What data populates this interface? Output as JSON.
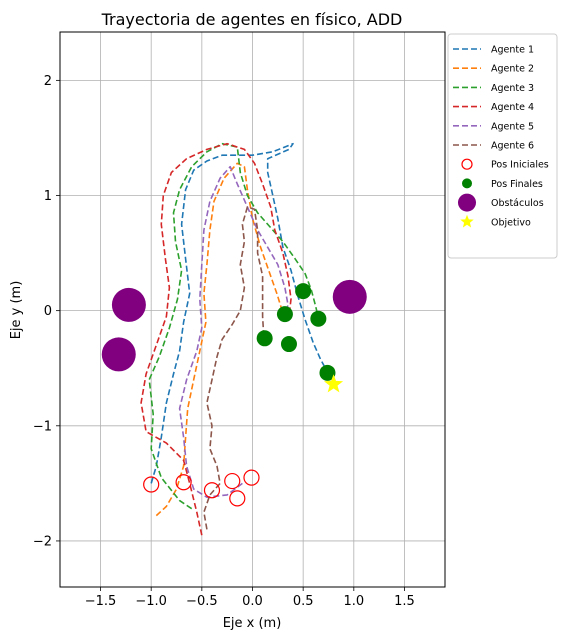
{
  "chart_data": {
    "type": "line",
    "title": "Trayectoria de agentes en físico, ADD",
    "xlabel": "Eje x (m)",
    "ylabel": "Eje y (m)",
    "xlim": [
      -1.9,
      1.9
    ],
    "ylim": [
      -2.4,
      2.42
    ],
    "xticks": [
      -1.5,
      -1.0,
      -0.5,
      0.0,
      0.5,
      1.0,
      1.5
    ],
    "xtick_labels": [
      "−1.5",
      "−1.0",
      "−0.5",
      "0.0",
      "0.5",
      "1.0",
      "1.5"
    ],
    "yticks": [
      -2,
      -1,
      0,
      1,
      2
    ],
    "ytick_labels": [
      "−2",
      "−1",
      "0",
      "1",
      "2"
    ],
    "grid": true,
    "legend_position": "outside-right-top",
    "series": [
      {
        "name": "Agente 1",
        "color": "#1f77b4",
        "style": "dashed",
        "points": [
          [
            -1.0,
            -1.5
          ],
          [
            -0.95,
            -1.35
          ],
          [
            -0.9,
            -1.1
          ],
          [
            -0.85,
            -0.8
          ],
          [
            -0.78,
            -0.55
          ],
          [
            -0.72,
            -0.35
          ],
          [
            -0.68,
            -0.1
          ],
          [
            -0.62,
            0.15
          ],
          [
            -0.66,
            0.45
          ],
          [
            -0.7,
            0.75
          ],
          [
            -0.66,
            1.05
          ],
          [
            -0.58,
            1.22
          ],
          [
            -0.45,
            1.3
          ],
          [
            -0.3,
            1.35
          ],
          [
            0.0,
            1.35
          ],
          [
            0.2,
            1.38
          ],
          [
            0.4,
            1.45
          ],
          [
            0.36,
            1.4
          ],
          [
            0.15,
            1.32
          ],
          [
            0.15,
            1.2
          ],
          [
            0.2,
            1.0
          ],
          [
            0.25,
            0.8
          ],
          [
            0.3,
            0.55
          ],
          [
            0.38,
            0.35
          ],
          [
            0.45,
            0.12
          ],
          [
            0.52,
            -0.08
          ],
          [
            0.6,
            -0.28
          ],
          [
            0.67,
            -0.42
          ],
          [
            0.72,
            -0.5
          ]
        ]
      },
      {
        "name": "Agente 2",
        "color": "#ff7f0e",
        "style": "dashed",
        "points": [
          [
            -0.95,
            -1.78
          ],
          [
            -0.85,
            -1.7
          ],
          [
            -0.75,
            -1.55
          ],
          [
            -0.68,
            -1.35
          ],
          [
            -0.66,
            -1.1
          ],
          [
            -0.64,
            -0.85
          ],
          [
            -0.58,
            -0.6
          ],
          [
            -0.52,
            -0.35
          ],
          [
            -0.46,
            -0.1
          ],
          [
            -0.48,
            0.15
          ],
          [
            -0.45,
            0.4
          ],
          [
            -0.42,
            0.7
          ],
          [
            -0.38,
            0.95
          ],
          [
            -0.28,
            1.15
          ],
          [
            -0.15,
            1.28
          ],
          [
            -0.08,
            1.25
          ],
          [
            -0.05,
            1.05
          ],
          [
            0.0,
            0.8
          ],
          [
            0.08,
            0.55
          ],
          [
            0.16,
            0.35
          ],
          [
            0.24,
            0.15
          ],
          [
            0.3,
            -0.02
          ]
        ]
      },
      {
        "name": "Agente 3",
        "color": "#2ca02c",
        "style": "dashed",
        "points": [
          [
            -0.6,
            -1.72
          ],
          [
            -0.72,
            -1.65
          ],
          [
            -0.9,
            -1.45
          ],
          [
            -1.0,
            -1.2
          ],
          [
            -0.98,
            -0.9
          ],
          [
            -1.02,
            -0.6
          ],
          [
            -0.92,
            -0.4
          ],
          [
            -0.82,
            -0.15
          ],
          [
            -0.74,
            0.1
          ],
          [
            -0.7,
            0.35
          ],
          [
            -0.76,
            0.6
          ],
          [
            -0.78,
            0.85
          ],
          [
            -0.72,
            1.05
          ],
          [
            -0.6,
            1.25
          ],
          [
            -0.45,
            1.38
          ],
          [
            -0.3,
            1.45
          ],
          [
            -0.15,
            1.42
          ],
          [
            -0.12,
            1.2
          ],
          [
            -0.05,
            1.0
          ],
          [
            0.05,
            0.85
          ],
          [
            0.18,
            0.72
          ],
          [
            0.3,
            0.6
          ],
          [
            0.42,
            0.45
          ],
          [
            0.52,
            0.32
          ],
          [
            0.58,
            0.18
          ],
          [
            0.62,
            0.05
          ],
          [
            0.65,
            -0.06
          ]
        ]
      },
      {
        "name": "Agente 4",
        "color": "#d62728",
        "style": "dashed",
        "points": [
          [
            -0.5,
            -1.95
          ],
          [
            -0.55,
            -1.75
          ],
          [
            -0.62,
            -1.5
          ],
          [
            -0.68,
            -1.3
          ],
          [
            -0.85,
            -1.15
          ],
          [
            -1.05,
            -1.05
          ],
          [
            -1.1,
            -0.8
          ],
          [
            -1.05,
            -0.55
          ],
          [
            -0.95,
            -0.3
          ],
          [
            -0.85,
            -0.05
          ],
          [
            -0.82,
            0.2
          ],
          [
            -0.86,
            0.45
          ],
          [
            -0.9,
            0.75
          ],
          [
            -0.88,
            1.0
          ],
          [
            -0.8,
            1.2
          ],
          [
            -0.65,
            1.32
          ],
          [
            -0.45,
            1.4
          ],
          [
            -0.25,
            1.45
          ],
          [
            -0.08,
            1.4
          ],
          [
            0.02,
            1.28
          ],
          [
            0.1,
            1.1
          ],
          [
            0.18,
            0.9
          ],
          [
            0.22,
            0.7
          ],
          [
            0.3,
            0.5
          ],
          [
            0.35,
            0.3
          ],
          [
            0.38,
            0.1
          ],
          [
            0.36,
            -0.05
          ]
        ]
      },
      {
        "name": "Agente 5",
        "color": "#9467bd",
        "style": "dashed",
        "points": [
          [
            -0.1,
            -1.5
          ],
          [
            -0.25,
            -1.6
          ],
          [
            -0.45,
            -1.62
          ],
          [
            -0.58,
            -1.55
          ],
          [
            -0.65,
            -1.35
          ],
          [
            -0.68,
            -1.1
          ],
          [
            -0.72,
            -0.85
          ],
          [
            -0.65,
            -0.6
          ],
          [
            -0.55,
            -0.35
          ],
          [
            -0.5,
            -0.15
          ],
          [
            -0.52,
            0.1
          ],
          [
            -0.5,
            0.4
          ],
          [
            -0.48,
            0.7
          ],
          [
            -0.42,
            0.95
          ],
          [
            -0.32,
            1.15
          ],
          [
            -0.22,
            1.25
          ],
          [
            -0.15,
            1.1
          ],
          [
            -0.05,
            0.9
          ],
          [
            0.05,
            0.7
          ],
          [
            0.15,
            0.55
          ],
          [
            0.25,
            0.4
          ],
          [
            0.32,
            0.2
          ],
          [
            0.35,
            0.05
          ],
          [
            0.33,
            -0.02
          ]
        ]
      },
      {
        "name": "Agente 6",
        "color": "#8c564b",
        "style": "dashed",
        "points": [
          [
            -0.45,
            -1.9
          ],
          [
            -0.48,
            -1.75
          ],
          [
            -0.42,
            -1.6
          ],
          [
            -0.32,
            -1.5
          ],
          [
            -0.35,
            -1.35
          ],
          [
            -0.42,
            -1.2
          ],
          [
            -0.4,
            -1.0
          ],
          [
            -0.45,
            -0.8
          ],
          [
            -0.4,
            -0.6
          ],
          [
            -0.35,
            -0.4
          ],
          [
            -0.3,
            -0.25
          ],
          [
            -0.2,
            -0.12
          ],
          [
            -0.12,
            0.0
          ],
          [
            -0.08,
            0.2
          ],
          [
            -0.12,
            0.4
          ],
          [
            -0.08,
            0.6
          ],
          [
            -0.1,
            0.75
          ],
          [
            -0.05,
            0.9
          ],
          [
            0.02,
            0.88
          ],
          [
            0.05,
            0.7
          ],
          [
            0.05,
            0.5
          ],
          [
            0.1,
            0.3
          ],
          [
            0.1,
            0.1
          ],
          [
            0.1,
            -0.05
          ],
          [
            0.11,
            -0.2
          ]
        ]
      }
    ],
    "initial_positions": {
      "name": "Pos Iniciales",
      "color": "#ff0000",
      "x": [
        -1.0,
        -0.68,
        -0.4,
        -0.2,
        -0.15,
        -0.01
      ],
      "y": [
        -1.51,
        -1.49,
        -1.56,
        -1.48,
        -1.63,
        -1.45
      ]
    },
    "final_positions": {
      "name": "Pos Finales",
      "color": "#008000",
      "x": [
        0.12,
        0.36,
        0.32,
        0.5,
        0.65,
        0.74
      ],
      "y": [
        -0.24,
        -0.29,
        -0.03,
        0.17,
        -0.07,
        -0.54
      ]
    },
    "obstacles": {
      "name": "Obstáculos",
      "color": "#800080",
      "x": [
        -1.22,
        -1.32,
        0.96
      ],
      "y": [
        0.05,
        -0.38,
        0.12
      ]
    },
    "goal": {
      "name": "Objetivo",
      "color": "#ffff00",
      "x": 0.8,
      "y": -0.64
    }
  }
}
